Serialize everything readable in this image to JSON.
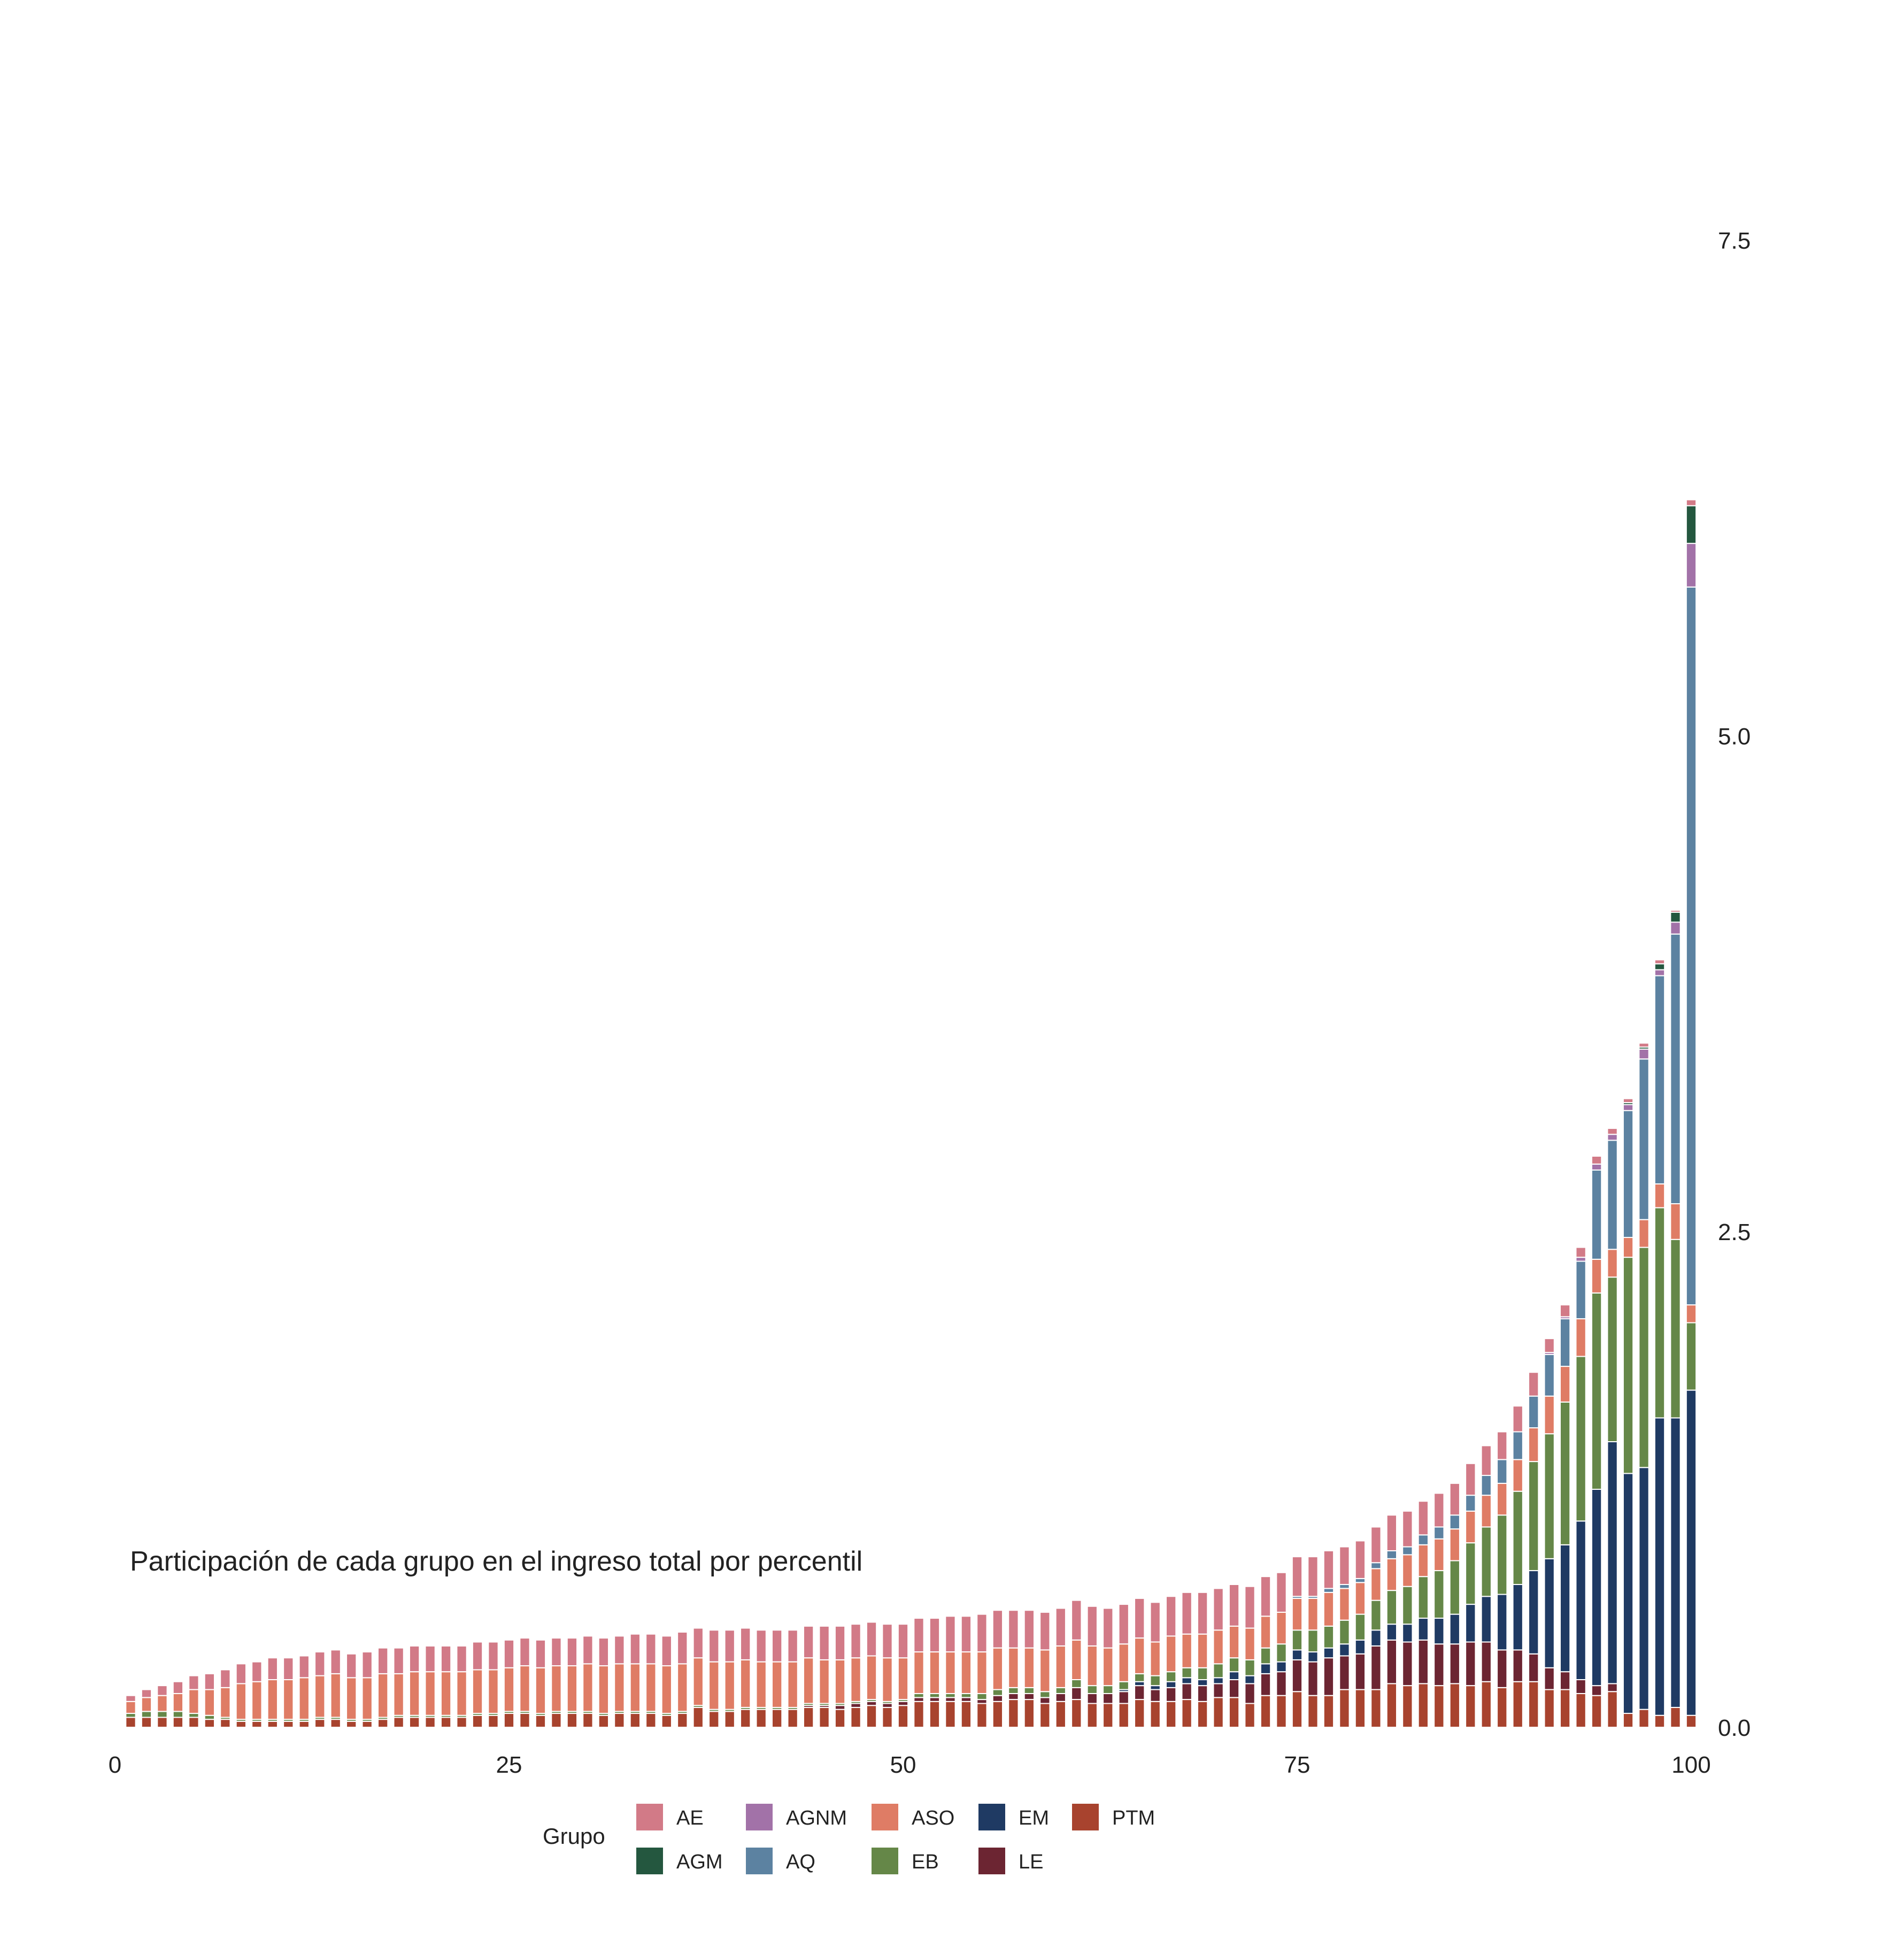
{
  "chart_data": {
    "type": "bar",
    "stacked": true,
    "title": "Participación de cada grupo en el ingreso total por percentil",
    "xlabel": "",
    "ylabel": "",
    "xlim": [
      0,
      100
    ],
    "ylim": [
      0,
      8.4
    ],
    "x_ticks": [
      0,
      25,
      50,
      75,
      100
    ],
    "x_tick_labels": [
      "0",
      "25",
      "50",
      "75",
      "100"
    ],
    "y_ticks": [
      0,
      2.5,
      5,
      7.5
    ],
    "y_tick_labels": [
      "0.0",
      "2.5",
      "5.0",
      "7.5"
    ],
    "y_axis_position": "right",
    "grid": false,
    "legend_position": "bottom",
    "legend_title": "Grupo",
    "series_order": [
      "PTM",
      "LE",
      "EM",
      "EB",
      "ASO",
      "AQ",
      "AGNM",
      "AGM",
      "AE"
    ],
    "legend": [
      {
        "name": "AE",
        "color": "#d27a87"
      },
      {
        "name": "AGM",
        "color": "#24573f"
      },
      {
        "name": "AGNM",
        "color": "#a272a8"
      },
      {
        "name": "AQ",
        "color": "#5c82a1"
      },
      {
        "name": "ASO",
        "color": "#df7c65"
      },
      {
        "name": "EB",
        "color": "#658748"
      },
      {
        "name": "EM",
        "color": "#1f3a63"
      },
      {
        "name": "LE",
        "color": "#6c2532"
      },
      {
        "name": "PTM",
        "color": "#a8432e"
      }
    ],
    "x": [
      1,
      2,
      3,
      4,
      5,
      6,
      7,
      8,
      9,
      10,
      11,
      12,
      13,
      14,
      15,
      16,
      17,
      18,
      19,
      20,
      21,
      22,
      23,
      24,
      25,
      26,
      27,
      28,
      29,
      30,
      31,
      32,
      33,
      34,
      35,
      36,
      37,
      38,
      39,
      40,
      41,
      42,
      43,
      44,
      45,
      46,
      47,
      48,
      49,
      50,
      51,
      52,
      53,
      54,
      55,
      56,
      57,
      58,
      59,
      60,
      61,
      62,
      63,
      64,
      65,
      66,
      67,
      68,
      69,
      70,
      71,
      72,
      73,
      74,
      75,
      76,
      77,
      78,
      79,
      80,
      81,
      82,
      83,
      84,
      85,
      86,
      87,
      88,
      89,
      90,
      91,
      92,
      93,
      94,
      95,
      96,
      97,
      98,
      99,
      100
    ],
    "series": [
      {
        "name": "PTM",
        "values": [
          0.05,
          0.05,
          0.05,
          0.05,
          0.05,
          0.04,
          0.04,
          0.03,
          0.03,
          0.03,
          0.03,
          0.03,
          0.04,
          0.04,
          0.03,
          0.03,
          0.04,
          0.05,
          0.05,
          0.05,
          0.05,
          0.05,
          0.06,
          0.06,
          0.07,
          0.07,
          0.06,
          0.07,
          0.07,
          0.07,
          0.06,
          0.07,
          0.07,
          0.07,
          0.06,
          0.07,
          0.1,
          0.08,
          0.08,
          0.09,
          0.09,
          0.09,
          0.09,
          0.1,
          0.1,
          0.09,
          0.1,
          0.11,
          0.1,
          0.11,
          0.13,
          0.13,
          0.13,
          0.13,
          0.12,
          0.13,
          0.14,
          0.14,
          0.12,
          0.13,
          0.14,
          0.12,
          0.12,
          0.12,
          0.14,
          0.13,
          0.13,
          0.14,
          0.13,
          0.15,
          0.15,
          0.12,
          0.16,
          0.16,
          0.18,
          0.16,
          0.16,
          0.19,
          0.19,
          0.19,
          0.22,
          0.21,
          0.22,
          0.21,
          0.22,
          0.21,
          0.23,
          0.2,
          0.23,
          0.23,
          0.19,
          0.19,
          0.17,
          0.16,
          0.18,
          0.07,
          0.09,
          0.06,
          0.1,
          0.06
        ]
      },
      {
        "name": "LE",
        "values": [
          0,
          0,
          0,
          0,
          0,
          0,
          0,
          0,
          0,
          0,
          0,
          0,
          0,
          0,
          0,
          0,
          0,
          0,
          0,
          0,
          0,
          0,
          0,
          0,
          0,
          0,
          0,
          0,
          0,
          0,
          0,
          0,
          0,
          0,
          0,
          0,
          0,
          0,
          0,
          0,
          0,
          0,
          0,
          0.01,
          0.01,
          0.02,
          0.02,
          0.02,
          0.02,
          0.02,
          0.02,
          0.02,
          0.02,
          0.02,
          0.02,
          0.03,
          0.03,
          0.03,
          0.03,
          0.04,
          0.06,
          0.05,
          0.05,
          0.06,
          0.07,
          0.06,
          0.07,
          0.08,
          0.08,
          0.07,
          0.09,
          0.1,
          0.11,
          0.12,
          0.16,
          0.17,
          0.19,
          0.17,
          0.18,
          0.22,
          0.22,
          0.22,
          0.22,
          0.21,
          0.2,
          0.22,
          0.2,
          0.19,
          0.16,
          0.14,
          0.11,
          0.09,
          0.07,
          0.05,
          0.04,
          0,
          0,
          0,
          0,
          0
        ]
      },
      {
        "name": "EM",
        "values": [
          0,
          0,
          0,
          0,
          0,
          0,
          0,
          0,
          0,
          0,
          0,
          0,
          0,
          0,
          0,
          0,
          0,
          0,
          0,
          0,
          0,
          0,
          0,
          0,
          0,
          0,
          0,
          0,
          0,
          0,
          0,
          0,
          0,
          0,
          0,
          0,
          0,
          0,
          0,
          0,
          0,
          0,
          0,
          0,
          0,
          0,
          0,
          0,
          0,
          0,
          0,
          0,
          0,
          0,
          0,
          0,
          0,
          0,
          0,
          0,
          0,
          0,
          0,
          0.01,
          0.02,
          0.02,
          0.03,
          0.03,
          0.03,
          0.03,
          0.04,
          0.04,
          0.05,
          0.05,
          0.05,
          0.05,
          0.05,
          0.06,
          0.07,
          0.08,
          0.08,
          0.09,
          0.11,
          0.13,
          0.15,
          0.19,
          0.23,
          0.28,
          0.33,
          0.42,
          0.55,
          0.64,
          0.8,
          0.99,
          1.22,
          1.21,
          1.22,
          1.5,
          1.46,
          1.64
        ]
      },
      {
        "name": "EB",
        "values": [
          0.02,
          0.03,
          0.03,
          0.03,
          0.02,
          0.02,
          0.01,
          0.01,
          0.01,
          0.01,
          0.01,
          0.01,
          0.01,
          0.01,
          0.01,
          0.01,
          0.01,
          0.01,
          0.01,
          0.01,
          0.01,
          0.01,
          0.01,
          0.01,
          0.01,
          0.01,
          0.01,
          0.01,
          0.01,
          0.01,
          0.01,
          0.01,
          0.01,
          0.01,
          0.01,
          0.01,
          0.01,
          0.01,
          0.01,
          0.01,
          0.01,
          0.01,
          0.01,
          0.01,
          0.01,
          0.01,
          0.01,
          0.01,
          0.01,
          0.01,
          0.02,
          0.02,
          0.02,
          0.02,
          0.03,
          0.03,
          0.03,
          0.03,
          0.03,
          0.03,
          0.04,
          0.04,
          0.04,
          0.04,
          0.04,
          0.05,
          0.05,
          0.05,
          0.06,
          0.07,
          0.07,
          0.08,
          0.08,
          0.09,
          0.1,
          0.11,
          0.11,
          0.12,
          0.13,
          0.15,
          0.17,
          0.19,
          0.21,
          0.24,
          0.27,
          0.31,
          0.35,
          0.4,
          0.47,
          0.55,
          0.63,
          0.72,
          0.83,
          0.99,
          0.83,
          1.09,
          1.11,
          1.06,
          0.9,
          0.34
        ]
      },
      {
        "name": "ASO",
        "values": [
          0.06,
          0.07,
          0.08,
          0.09,
          0.12,
          0.13,
          0.15,
          0.18,
          0.19,
          0.2,
          0.2,
          0.21,
          0.21,
          0.22,
          0.21,
          0.21,
          0.22,
          0.21,
          0.22,
          0.22,
          0.22,
          0.22,
          0.22,
          0.22,
          0.22,
          0.23,
          0.23,
          0.23,
          0.23,
          0.24,
          0.24,
          0.24,
          0.24,
          0.24,
          0.24,
          0.24,
          0.24,
          0.24,
          0.24,
          0.24,
          0.23,
          0.23,
          0.23,
          0.23,
          0.22,
          0.22,
          0.22,
          0.22,
          0.22,
          0.21,
          0.21,
          0.21,
          0.21,
          0.21,
          0.21,
          0.21,
          0.2,
          0.2,
          0.21,
          0.21,
          0.2,
          0.2,
          0.19,
          0.19,
          0.18,
          0.17,
          0.18,
          0.17,
          0.17,
          0.17,
          0.16,
          0.16,
          0.16,
          0.16,
          0.16,
          0.16,
          0.17,
          0.16,
          0.16,
          0.16,
          0.16,
          0.16,
          0.16,
          0.16,
          0.16,
          0.16,
          0.16,
          0.16,
          0.16,
          0.17,
          0.19,
          0.18,
          0.19,
          0.17,
          0.14,
          0.1,
          0.14,
          0.12,
          0.18,
          0.09
        ]
      },
      {
        "name": "AQ",
        "values": [
          0,
          0,
          0,
          0,
          0,
          0,
          0,
          0,
          0,
          0,
          0,
          0,
          0,
          0,
          0,
          0,
          0,
          0,
          0,
          0,
          0,
          0,
          0,
          0,
          0,
          0,
          0,
          0,
          0,
          0,
          0,
          0,
          0,
          0,
          0,
          0,
          0,
          0,
          0,
          0,
          0,
          0,
          0,
          0,
          0,
          0,
          0,
          0,
          0,
          0,
          0,
          0,
          0,
          0,
          0,
          0,
          0,
          0,
          0,
          0,
          0,
          0,
          0,
          0,
          0,
          0,
          0,
          0,
          0,
          0,
          0,
          0,
          0,
          0,
          0.01,
          0.01,
          0.02,
          0.02,
          0.02,
          0.03,
          0.04,
          0.04,
          0.05,
          0.06,
          0.07,
          0.08,
          0.1,
          0.12,
          0.14,
          0.16,
          0.21,
          0.24,
          0.29,
          0.45,
          0.55,
          0.64,
          0.81,
          1.05,
          1.36,
          3.62
        ]
      },
      {
        "name": "AGNM",
        "values": [
          0,
          0,
          0,
          0,
          0,
          0,
          0,
          0,
          0,
          0,
          0,
          0,
          0,
          0,
          0,
          0,
          0,
          0,
          0,
          0,
          0,
          0,
          0,
          0,
          0,
          0,
          0,
          0,
          0,
          0,
          0,
          0,
          0,
          0,
          0,
          0,
          0,
          0,
          0,
          0,
          0,
          0,
          0,
          0,
          0,
          0,
          0,
          0,
          0,
          0,
          0,
          0,
          0,
          0,
          0,
          0,
          0,
          0,
          0,
          0,
          0,
          0,
          0,
          0,
          0,
          0,
          0,
          0,
          0,
          0,
          0,
          0,
          0,
          0,
          0,
          0,
          0,
          0,
          0,
          0,
          0,
          0,
          0,
          0,
          0,
          0,
          0,
          0,
          0,
          0,
          0.01,
          0.01,
          0.02,
          0.03,
          0.03,
          0.03,
          0.05,
          0.03,
          0.06,
          0.22
        ]
      },
      {
        "name": "AGM",
        "values": [
          0,
          0,
          0,
          0,
          0,
          0,
          0,
          0,
          0,
          0,
          0,
          0,
          0,
          0,
          0,
          0,
          0,
          0,
          0,
          0,
          0,
          0,
          0,
          0,
          0,
          0,
          0,
          0,
          0,
          0,
          0,
          0,
          0,
          0,
          0,
          0,
          0,
          0,
          0,
          0,
          0,
          0,
          0,
          0,
          0,
          0,
          0,
          0,
          0,
          0,
          0,
          0,
          0,
          0,
          0,
          0,
          0,
          0,
          0,
          0,
          0,
          0,
          0,
          0,
          0,
          0,
          0,
          0,
          0,
          0,
          0,
          0,
          0,
          0,
          0,
          0,
          0,
          0,
          0,
          0,
          0,
          0,
          0,
          0,
          0,
          0,
          0,
          0,
          0,
          0,
          0,
          0,
          0,
          0,
          0,
          0.01,
          0.01,
          0.03,
          0.05,
          0.19
        ]
      },
      {
        "name": "AE",
        "values": [
          0.03,
          0.04,
          0.05,
          0.06,
          0.07,
          0.08,
          0.09,
          0.1,
          0.1,
          0.11,
          0.11,
          0.11,
          0.12,
          0.12,
          0.12,
          0.13,
          0.13,
          0.13,
          0.13,
          0.13,
          0.13,
          0.13,
          0.14,
          0.14,
          0.14,
          0.14,
          0.14,
          0.14,
          0.14,
          0.14,
          0.14,
          0.14,
          0.15,
          0.15,
          0.15,
          0.16,
          0.15,
          0.16,
          0.16,
          0.16,
          0.16,
          0.16,
          0.16,
          0.16,
          0.17,
          0.17,
          0.17,
          0.17,
          0.17,
          0.17,
          0.17,
          0.17,
          0.18,
          0.18,
          0.19,
          0.19,
          0.19,
          0.19,
          0.19,
          0.19,
          0.2,
          0.2,
          0.2,
          0.2,
          0.2,
          0.2,
          0.2,
          0.21,
          0.21,
          0.21,
          0.21,
          0.21,
          0.2,
          0.2,
          0.2,
          0.2,
          0.19,
          0.19,
          0.19,
          0.18,
          0.18,
          0.18,
          0.17,
          0.17,
          0.16,
          0.16,
          0.15,
          0.14,
          0.13,
          0.12,
          0.07,
          0.06,
          0.05,
          0.04,
          0.03,
          0.02,
          0.02,
          0.02,
          0.01,
          0.03
        ]
      }
    ]
  }
}
